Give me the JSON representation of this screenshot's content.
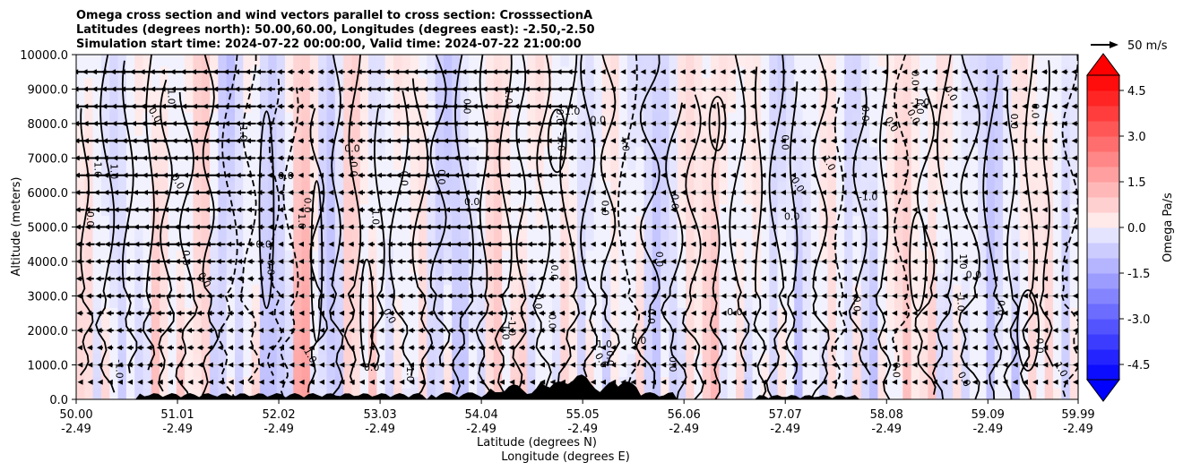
{
  "chart_data": {
    "type": "heatmap",
    "title_lines": [
      "Omega cross section and wind vectors parallel to cross section: CrosssectionA",
      "Latitudes (degrees north): 50.00,60.00, Longitudes (degrees east): -2.50,-2.50",
      "Simulation start time: 2024-07-22 00:00:00, Valid time: 2024-07-22 21:00:00"
    ],
    "xlabel_lines": [
      "Latitude (degrees N)",
      "Longitude (degrees E)"
    ],
    "ylabel": "Altitude (meters)",
    "xlim": [
      50.0,
      59.99
    ],
    "ylim": [
      0,
      10000
    ],
    "x_ticks": [
      {
        "lat": "50.00",
        "lon": "-2.49"
      },
      {
        "lat": "51.01",
        "lon": "-2.49"
      },
      {
        "lat": "52.02",
        "lon": "-2.49"
      },
      {
        "lat": "53.03",
        "lon": "-2.49"
      },
      {
        "lat": "54.04",
        "lon": "-2.49"
      },
      {
        "lat": "55.05",
        "lon": "-2.49"
      },
      {
        "lat": "56.06",
        "lon": "-2.49"
      },
      {
        "lat": "57.07",
        "lon": "-2.49"
      },
      {
        "lat": "58.08",
        "lon": "-2.49"
      },
      {
        "lat": "59.09",
        "lon": "-2.49"
      },
      {
        "lat": "59.99",
        "lon": "-2.49"
      }
    ],
    "y_ticks": [
      "0.0",
      "1000.0",
      "2000.0",
      "3000.0",
      "4000.0",
      "5000.0",
      "6000.0",
      "7000.0",
      "8000.0",
      "9000.0",
      "10000.0"
    ],
    "y_grid": true,
    "colorbar": {
      "label": "Omega Pa/s",
      "ticks": [
        "-4.5",
        "-3.0",
        "-1.5",
        "0.0",
        "1.5",
        "3.0",
        "4.5"
      ],
      "range": [
        -5.0,
        5.0
      ],
      "extend": "both",
      "colormap": "bwr",
      "low_color": "#0000ff",
      "high_color": "#ff0000"
    },
    "quiver_key": "50 m/s",
    "contour_labels": [
      "0.0",
      "1.0",
      "-1.0"
    ],
    "terrain_color": "#000000",
    "contour_color": "#000000"
  }
}
